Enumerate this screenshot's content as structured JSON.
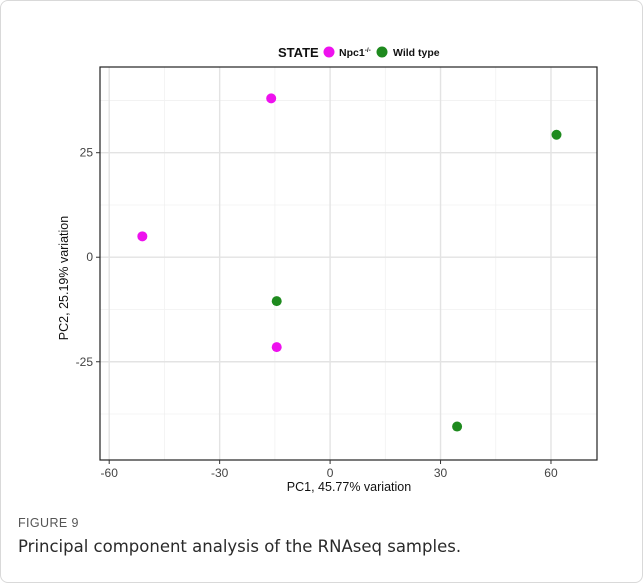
{
  "chart_data": {
    "type": "scatter",
    "title": "",
    "xlabel": "PC1, 45.77% variation",
    "ylabel": "PC2, 25.19% variation",
    "xlim": [
      -62.5,
      72.5
    ],
    "ylim": [
      -48.5,
      45.5
    ],
    "x_ticks": [
      -60,
      -30,
      0,
      30,
      60
    ],
    "y_ticks": [
      25,
      0,
      -25
    ],
    "x_minor_grid": [
      -45,
      -15,
      15,
      45
    ],
    "y_minor_grid": [
      37.5,
      12.5,
      -12.5,
      -37.5
    ],
    "grid": true,
    "legend": {
      "position": "top",
      "title": "STATE",
      "entries": [
        {
          "label": "Npc1",
          "superscript": "-/-",
          "color": "#ee11ee"
        },
        {
          "label": "Wild type",
          "color": "#1e8a1e"
        }
      ]
    },
    "series": [
      {
        "color": "#ee11ee",
        "points": [
          {
            "x": -16,
            "y": 38
          },
          {
            "x": -51,
            "y": 5
          },
          {
            "x": -14.5,
            "y": -21.5
          }
        ]
      },
      {
        "color": "#1e8a1e",
        "points": [
          {
            "x": 61.5,
            "y": 29.3
          },
          {
            "x": -14.5,
            "y": -10.5
          },
          {
            "x": 34.5,
            "y": -40.5
          }
        ]
      }
    ]
  },
  "caption": {
    "label": "FIGURE 9",
    "text": "Principal component analysis of the RNAseq samples."
  }
}
